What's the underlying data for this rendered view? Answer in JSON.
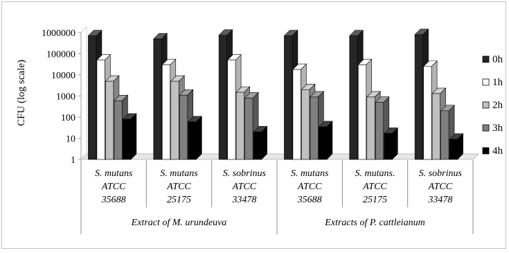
{
  "chart_data": {
    "type": "bar",
    "style": "3d-clustered-column",
    "y_scale": "log",
    "ylabel": "CFU (log scale)",
    "ylim": [
      1,
      1000000
    ],
    "y_ticks": [
      "1",
      "10",
      "100",
      "1000",
      "10000",
      "100000",
      "1000000"
    ],
    "grid": false,
    "legend_position": "right",
    "groups": [
      {
        "label": "Extract of M. urundeuva",
        "category_count": 3
      },
      {
        "label": "Extracts of P. cattleianum",
        "category_count": 3
      }
    ],
    "categories": [
      [
        "S. mutans",
        "ATCC",
        "35688"
      ],
      [
        "S. mutans",
        "ATCC",
        "25175"
      ],
      [
        "S. sobrinus",
        "ATCC",
        "33478"
      ],
      [
        "S. mutans",
        "ATCC",
        "35688"
      ],
      [
        "S. mutans.",
        "ATCC",
        "25175"
      ],
      [
        "S. sobrinus",
        "ATCC",
        "33478"
      ]
    ],
    "series": [
      {
        "name": "0h",
        "color": "#262626",
        "values": [
          700000,
          500000,
          750000,
          700000,
          700000,
          800000
        ]
      },
      {
        "name": "1h",
        "color": "#ffffff",
        "values": [
          50000,
          30000,
          50000,
          18000,
          30000,
          25000
        ]
      },
      {
        "name": "2h",
        "color": "#c0c0c0",
        "values": [
          5000,
          5000,
          1500,
          2000,
          900,
          1300
        ]
      },
      {
        "name": "3h",
        "color": "#7f7f7f",
        "values": [
          600,
          1100,
          800,
          900,
          500,
          200
        ]
      },
      {
        "name": "4h",
        "color": "#000000",
        "values": [
          80,
          60,
          20,
          35,
          17,
          9
        ]
      }
    ]
  }
}
